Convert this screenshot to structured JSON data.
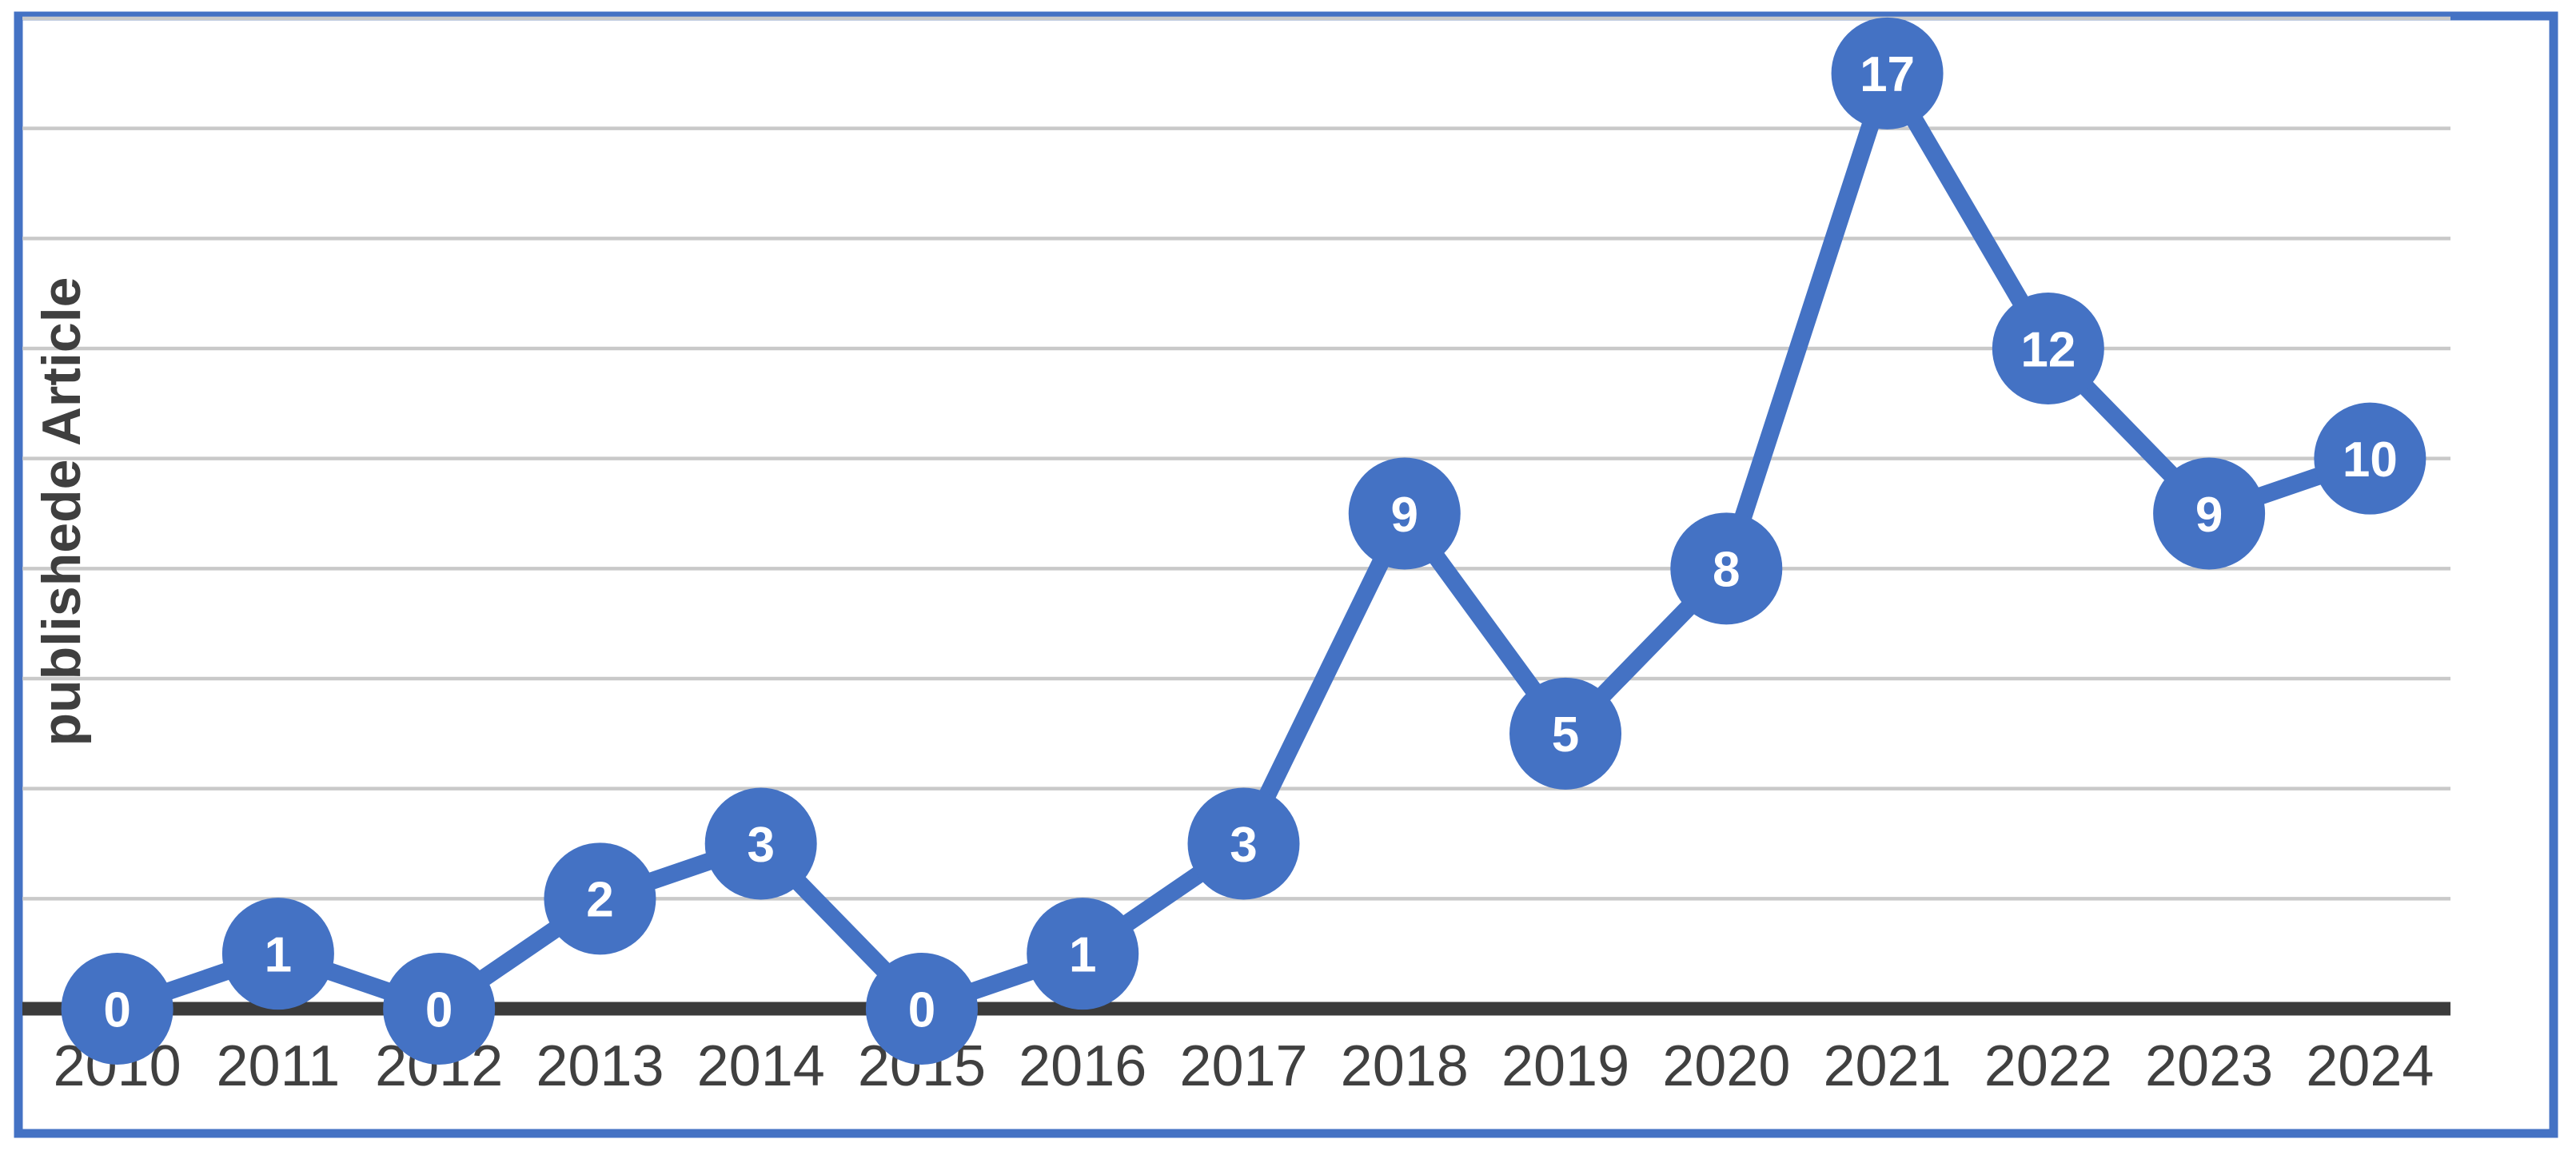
{
  "chart_data": {
    "type": "line",
    "title": "",
    "xlabel": "",
    "ylabel": "publishede Article",
    "categories": [
      "2010",
      "2011",
      "2012",
      "2013",
      "2014",
      "2015",
      "2016",
      "2017",
      "2018",
      "2019",
      "2020",
      "2021",
      "2022",
      "2023",
      "2024"
    ],
    "series": [
      {
        "name": "publishede Article",
        "values": [
          0,
          1,
          0,
          2,
          3,
          0,
          1,
          3,
          9,
          5,
          8,
          17,
          12,
          9,
          10
        ]
      }
    ],
    "data_labels": [
      "0",
      "1",
      "0",
      "2",
      "3",
      "0",
      "1",
      "3",
      "9",
      "5",
      "8",
      "17",
      "12",
      "9",
      "10"
    ],
    "ylim": [
      0,
      18
    ],
    "gridline_step": 2,
    "grid": true,
    "legend_position": "none",
    "marker_style": "filled-circle-with-value",
    "colors": {
      "series_line": "#4472C4",
      "marker_fill": "#4472C4",
      "marker_label_text": "#FFFFFF",
      "chart_border": "#4472C4",
      "axis_line": "#3B3B3B",
      "gridline": "#C9C9C9",
      "tick_label_text": "#404040",
      "axis_title_text": "#3F3F3F",
      "background": "#FFFFFF"
    }
  }
}
